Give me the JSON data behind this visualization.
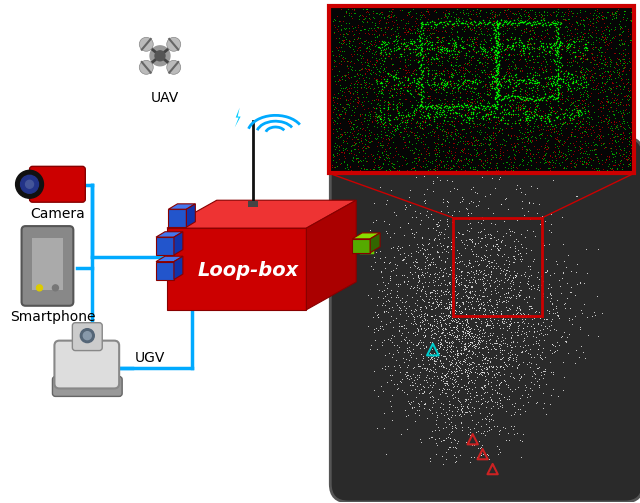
{
  "bg_color": "#ffffff",
  "loopbox_label": "Loop-box",
  "loopbox_label_color": "#ffffff",
  "connector_color": "#00aaff",
  "output_connector_color": "#66cc00",
  "labels": [
    "UAV",
    "Camera",
    "Smartphone",
    "UGV"
  ],
  "map_bg": "#2a2a2a",
  "map_border_color": "#555555",
  "zoom_border": "#cc0000",
  "loopbox_front": "#cc0000",
  "loopbox_top": "#ee3333",
  "loopbox_side": "#aa0000",
  "cube_front": "#2255cc",
  "cube_top": "#4477ee",
  "cube_side": "#1133aa",
  "green_front": "#55aa00",
  "green_top": "#88dd00",
  "green_side": "#336600"
}
